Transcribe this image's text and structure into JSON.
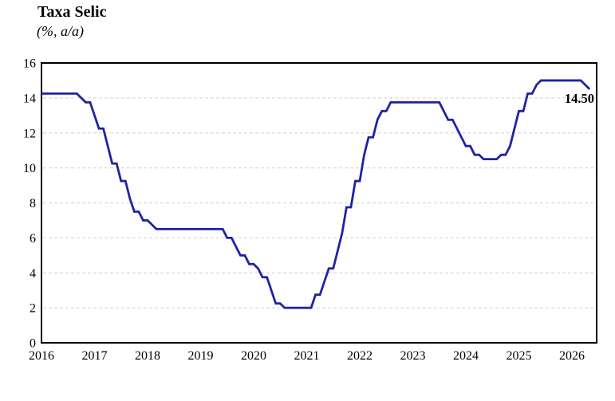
{
  "header": {
    "title": "Taxa Selic",
    "subtitle": "(%, a/a)"
  },
  "chart_data": {
    "type": "line",
    "title": "Taxa Selic",
    "subtitle": "(%, a/a)",
    "line_style": "step-monthly",
    "legend": "none",
    "grid": "horizontal-dashed",
    "xlabel": "",
    "ylabel": "",
    "ylim": [
      0,
      16
    ],
    "yticks": [
      0,
      2,
      4,
      6,
      8,
      10,
      12,
      14,
      16
    ],
    "xticks": [
      2016,
      2017,
      2018,
      2019,
      2020,
      2021,
      2022,
      2023,
      2024,
      2025,
      2026
    ],
    "x_start_year": 2016,
    "x_resolution": "monthly",
    "end_label": "14.50",
    "colors": {
      "line": "#1e23a3",
      "grid": "#d9d9d9",
      "axis": "#000000",
      "text": "#000000"
    },
    "series": [
      {
        "name": "Taxa Selic (%, a/a)",
        "start": "2016-01",
        "values": [
          14.25,
          14.25,
          14.25,
          14.25,
          14.25,
          14.25,
          14.25,
          14.25,
          14.25,
          14.0,
          13.75,
          13.75,
          13.0,
          12.25,
          12.25,
          11.25,
          10.25,
          10.25,
          9.25,
          9.25,
          8.25,
          7.5,
          7.5,
          7.0,
          7.0,
          6.75,
          6.5,
          6.5,
          6.5,
          6.5,
          6.5,
          6.5,
          6.5,
          6.5,
          6.5,
          6.5,
          6.5,
          6.5,
          6.5,
          6.5,
          6.5,
          6.5,
          6.0,
          6.0,
          5.5,
          5.0,
          5.0,
          4.5,
          4.5,
          4.25,
          3.75,
          3.75,
          3.0,
          2.25,
          2.25,
          2.0,
          2.0,
          2.0,
          2.0,
          2.0,
          2.0,
          2.0,
          2.75,
          2.75,
          3.5,
          4.25,
          4.25,
          5.25,
          6.25,
          7.75,
          7.75,
          9.25,
          9.25,
          10.75,
          11.75,
          11.75,
          12.75,
          13.25,
          13.25,
          13.75,
          13.75,
          13.75,
          13.75,
          13.75,
          13.75,
          13.75,
          13.75,
          13.75,
          13.75,
          13.75,
          13.75,
          13.25,
          12.75,
          12.75,
          12.25,
          11.75,
          11.25,
          11.25,
          10.75,
          10.75,
          10.5,
          10.5,
          10.5,
          10.5,
          10.75,
          10.75,
          11.25,
          12.25,
          13.25,
          13.25,
          14.25,
          14.25,
          14.75,
          15.0,
          15.0,
          15.0,
          15.0,
          15.0,
          15.0,
          15.0,
          15.0,
          15.0,
          15.0,
          14.75,
          14.5
        ]
      }
    ]
  }
}
